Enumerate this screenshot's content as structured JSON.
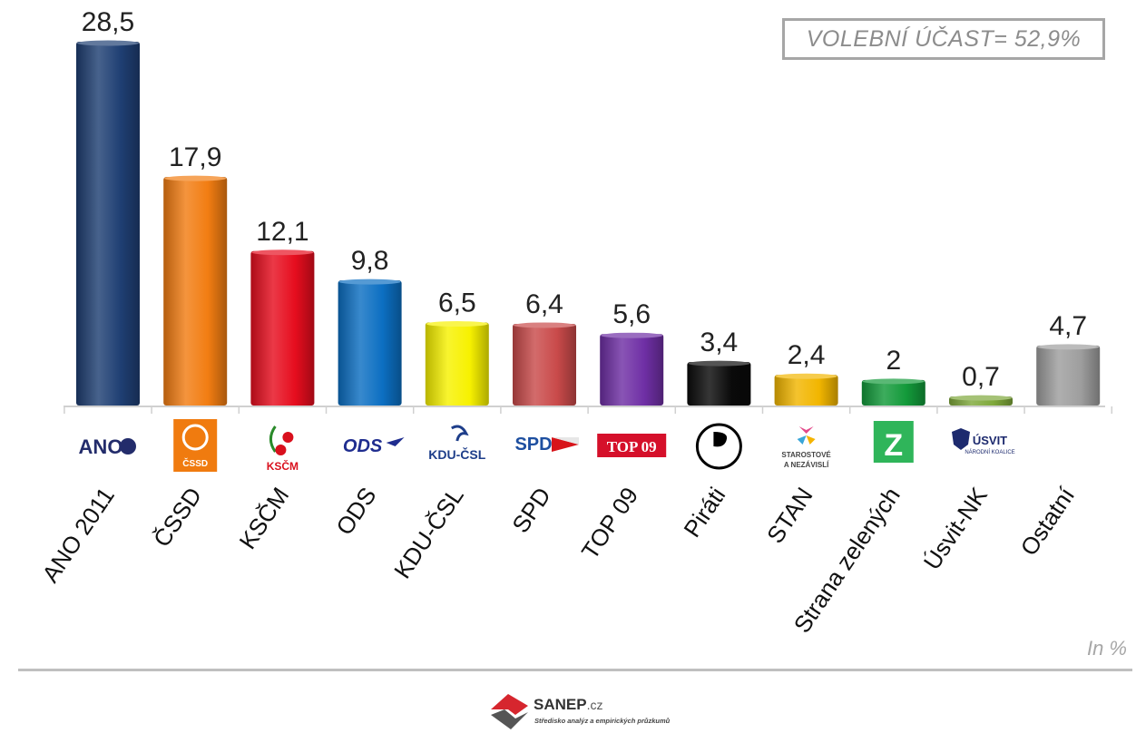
{
  "turnout_label": "VOLEBNÍ ÚČAST= 52,9%",
  "unit_label": "In %",
  "footer": {
    "brand": "SANEP",
    "brand_suffix": ".cz",
    "subtitle": "Středisko analýz a empirických průzkumů"
  },
  "chart_data": {
    "type": "bar",
    "categories": [
      "ANO 2011",
      "ČSSD",
      "KSČM",
      "ODS",
      "KDU-ČSL",
      "SPD",
      "TOP 09",
      "Piráti",
      "STAN",
      "Strana zelených",
      "Úsvit-NK",
      "Ostatní"
    ],
    "values": [
      28.5,
      17.9,
      12.1,
      9.8,
      6.5,
      6.4,
      5.6,
      3.4,
      2.4,
      2,
      0.7,
      4.7
    ],
    "data_labels": [
      "28,5",
      "17,9",
      "12,1",
      "9,8",
      "6,5",
      "6,4",
      "5,6",
      "3,4",
      "2,4",
      "2",
      "0,7",
      "4,7"
    ],
    "colors": [
      "#1f3f73",
      "#f27d12",
      "#e60d1e",
      "#0c6fc2",
      "#f7f100",
      "#c94a4a",
      "#6f2fa5",
      "#0a0a0a",
      "#f2b600",
      "#139a3a",
      "#7fa83b",
      "#9e9e9e"
    ],
    "logos": [
      "ano-logo",
      "cssd-logo",
      "kscm-logo",
      "ods-logo",
      "kdu-csl-logo",
      "spd-logo",
      "top09-logo",
      "pirati-logo",
      "stan-logo",
      "zeleni-logo",
      "usvit-logo",
      ""
    ],
    "logo_texts": [
      "ANO",
      "ČSSD",
      "KSČM",
      "ODS",
      "KDU-ČSL",
      "SPD",
      "TOP 09",
      "",
      "STAROSTOVÉ A NEZÁVISLÍ",
      "Z",
      "ÚSVIT NÁRODNÍ KOALICE",
      ""
    ],
    "ylim": [
      0,
      30
    ],
    "grid": false,
    "legend": "none"
  }
}
